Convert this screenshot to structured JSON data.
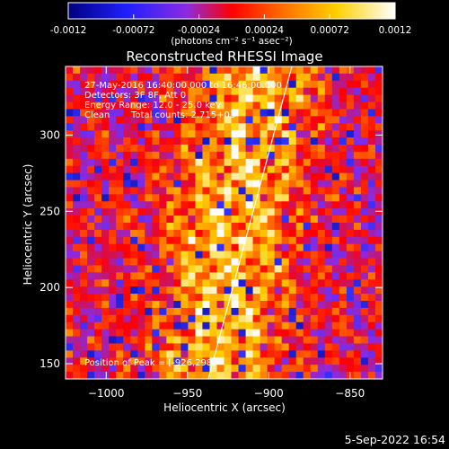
{
  "colors": {
    "background": "#000000",
    "text": "#ffffff",
    "limb_line": "#ffffff"
  },
  "colorbar": {
    "ticks": [
      "-0.0012",
      "-0.00072",
      "-0.00024",
      "0.00024",
      "0.00072",
      "0.0012"
    ],
    "unit_label": "(photons cm⁻² s⁻¹ asec⁻²)",
    "range": [
      -0.0012,
      0.0012
    ],
    "palette": [
      "#000080",
      "#3030ff",
      "#8a2be2",
      "#ff0000",
      "#ff8000",
      "#ffd000",
      "#ffffff"
    ]
  },
  "plot": {
    "title": "Reconstructed RHESSI Image",
    "info": {
      "time": "27-May-2016 16:40:00.000 to 16:46:00.000",
      "detectors": "Detectors: 3F 8F, Att 0",
      "energy": "Energy Range: 12.0 - 25.0 keV",
      "method": "Clean",
      "counts": "Total counts: 2.715+03"
    },
    "peak": "Position of Peak = [-926,298]",
    "xlabel": "Heliocentric X (arcsec)",
    "ylabel": "Heliocentric Y (arcsec)",
    "xticks": [
      "-1000",
      "-950",
      "-900",
      "-850"
    ],
    "yticks": [
      "150",
      "200",
      "250",
      "300"
    ],
    "xrange": [
      -1025,
      -830
    ],
    "yrange": [
      140,
      345
    ]
  },
  "footer": {
    "timestamp": "5-Sep-2022 16:54"
  }
}
